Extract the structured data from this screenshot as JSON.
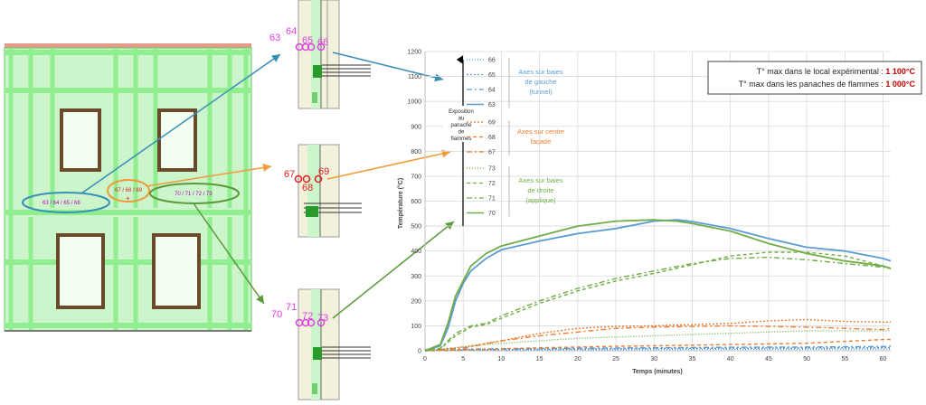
{
  "colors": {
    "frame": "#90ee90",
    "frame_dark": "#5ec85e",
    "window": "#6b4a2b",
    "roof": "#e59a8a",
    "sensor": "#e040e0",
    "sensor_label": "#c000c0",
    "red_label": "#e02020",
    "teal": "#3a8fb7",
    "orange": "#f09a3a",
    "olive": "#5a9a3a",
    "blue_series": "#5b9bd5",
    "green_series": "#70ad47",
    "orange_series": "#ed7d31",
    "grid": "#d9d9d9",
    "dark_red": "#c00000"
  },
  "facade": {
    "group_left": "63 / 64 / 65 / 66",
    "group_center": "67 / 68 / 69",
    "group_right": "70 / 71 / 72 / 73"
  },
  "sections": {
    "top": [
      "63",
      "64",
      "65",
      "66"
    ],
    "middle": [
      "67",
      "68",
      "69"
    ],
    "bottom": [
      "70",
      "71",
      "72",
      "73"
    ]
  },
  "info_box": {
    "line1_label": "T° max dans le local expérimental : ",
    "line1_value": "1 100°C",
    "line2_label": "T° max dans les panaches de flammes : ",
    "line2_value": "1 000°C"
  },
  "chart_data": {
    "type": "line",
    "xlabel": "Temps (minutes)",
    "ylabel": "Température (°C)",
    "xlim": [
      0,
      61
    ],
    "ylim": [
      0,
      1200
    ],
    "xticks": [
      0,
      5,
      10,
      15,
      20,
      25,
      30,
      35,
      40,
      45,
      50,
      55,
      60
    ],
    "yticks": [
      0,
      100,
      200,
      300,
      400,
      500,
      600,
      700,
      800,
      900,
      1000,
      1100,
      1200
    ],
    "exposure_label": [
      "Exposition",
      "au",
      "panache",
      "de",
      "flammes"
    ],
    "legend_groups": [
      {
        "title": [
          "Axes sur baies",
          "de gauche",
          "(tunnel)"
        ],
        "color": "#5b9bd5",
        "entries": [
          "66",
          "65",
          "64",
          "63"
        ]
      },
      {
        "title": [
          "Axes sur centre",
          "façade"
        ],
        "color": "#ed7d31",
        "entries": [
          "69",
          "68",
          "67"
        ]
      },
      {
        "title": [
          "Axes sur baies",
          "de droite",
          "(applique)"
        ],
        "color": "#70ad47",
        "entries": [
          "73",
          "72",
          "71",
          "70"
        ]
      }
    ],
    "series": [
      {
        "name": "63",
        "color": "#5b9bd5",
        "dash": "",
        "x": [
          0,
          2,
          3,
          4,
          5,
          6,
          8,
          10,
          15,
          20,
          25,
          30,
          33,
          35,
          40,
          45,
          50,
          55,
          60,
          61
        ],
        "y": [
          0,
          20,
          90,
          200,
          270,
          320,
          370,
          405,
          440,
          470,
          490,
          520,
          525,
          518,
          490,
          450,
          415,
          400,
          370,
          360
        ]
      },
      {
        "name": "64",
        "color": "#5b9bd5",
        "dash": "6 3 2 3",
        "x": [
          0,
          10,
          20,
          30,
          40,
          50,
          60,
          61
        ],
        "y": [
          5,
          8,
          10,
          12,
          14,
          15,
          17,
          18
        ]
      },
      {
        "name": "65",
        "color": "#5b9bd5",
        "dash": "2 2",
        "x": [
          0,
          10,
          20,
          30,
          40,
          50,
          60,
          61
        ],
        "y": [
          3,
          5,
          7,
          9,
          10,
          11,
          12,
          12
        ]
      },
      {
        "name": "66",
        "color": "#5b9bd5",
        "dash": "1 2",
        "x": [
          0,
          10,
          20,
          30,
          40,
          50,
          60,
          61
        ],
        "y": [
          2,
          3,
          4,
          5,
          6,
          6,
          7,
          7
        ]
      },
      {
        "name": "67",
        "color": "#ed7d31",
        "dash": "6 3 2 3",
        "x": [
          0,
          5,
          10,
          15,
          20,
          25,
          30,
          40,
          50,
          60,
          61
        ],
        "y": [
          0,
          10,
          40,
          60,
          75,
          90,
          95,
          100,
          95,
          85,
          90
        ]
      },
      {
        "name": "68",
        "color": "#ed7d31",
        "dash": "4 3",
        "x": [
          0,
          5,
          10,
          15,
          20,
          25,
          30,
          40,
          50,
          60,
          61
        ],
        "y": [
          0,
          3,
          8,
          12,
          15,
          18,
          20,
          25,
          30,
          45,
          45
        ]
      },
      {
        "name": "69",
        "color": "#ed7d31",
        "dash": "2 2",
        "x": [
          0,
          5,
          10,
          15,
          20,
          25,
          30,
          40,
          45,
          50,
          55,
          60,
          61
        ],
        "y": [
          0,
          15,
          40,
          70,
          90,
          98,
          100,
          110,
          120,
          125,
          118,
          115,
          115
        ]
      },
      {
        "name": "70",
        "color": "#70ad47",
        "dash": "",
        "x": [
          0,
          2,
          3,
          4,
          5,
          6,
          8,
          10,
          15,
          20,
          25,
          30,
          33,
          35,
          40,
          45,
          50,
          55,
          60,
          61
        ],
        "y": [
          0,
          25,
          110,
          220,
          280,
          340,
          390,
          420,
          460,
          500,
          520,
          525,
          520,
          510,
          480,
          430,
          390,
          360,
          340,
          330
        ]
      },
      {
        "name": "71",
        "color": "#70ad47",
        "dash": "6 3 2 3",
        "x": [
          0,
          2,
          4,
          6,
          8,
          10,
          15,
          20,
          25,
          30,
          35,
          40,
          45,
          50,
          55,
          60,
          61
        ],
        "y": [
          0,
          10,
          70,
          100,
          110,
          140,
          200,
          250,
          290,
          320,
          350,
          370,
          375,
          365,
          350,
          335,
          330
        ]
      },
      {
        "name": "72",
        "color": "#70ad47",
        "dash": "4 3",
        "x": [
          0,
          2,
          4,
          6,
          8,
          10,
          15,
          20,
          25,
          30,
          35,
          40,
          45,
          50,
          55,
          60,
          61
        ],
        "y": [
          0,
          8,
          60,
          95,
          105,
          130,
          190,
          240,
          280,
          310,
          345,
          380,
          395,
          395,
          380,
          340,
          330
        ]
      },
      {
        "name": "73",
        "color": "#70ad47",
        "dash": "1 2",
        "x": [
          0,
          10,
          20,
          30,
          40,
          50,
          60,
          61
        ],
        "y": [
          0,
          30,
          50,
          60,
          70,
          80,
          80,
          80
        ]
      }
    ]
  }
}
